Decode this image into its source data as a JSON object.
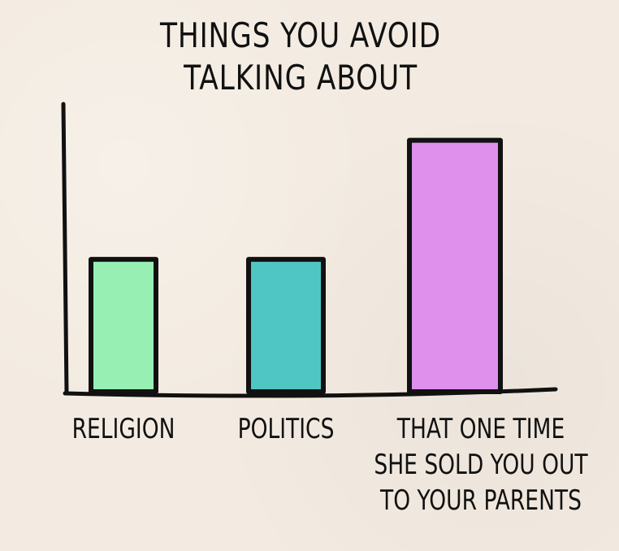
{
  "chart_data": {
    "type": "bar",
    "title": "THINGS YOU AVOID\nTALKING ABOUT",
    "categories": [
      "RELIGION",
      "POLITICS",
      "THAT ONE TIME\nSHE SOLD YOU OUT\nTO YOUR PARENTS"
    ],
    "values": [
      1,
      1,
      1.9
    ],
    "ylim": [
      0,
      2.1
    ],
    "grid": false,
    "colors": [
      "#98efb4",
      "#4fc6c4",
      "#de90ec"
    ]
  }
}
